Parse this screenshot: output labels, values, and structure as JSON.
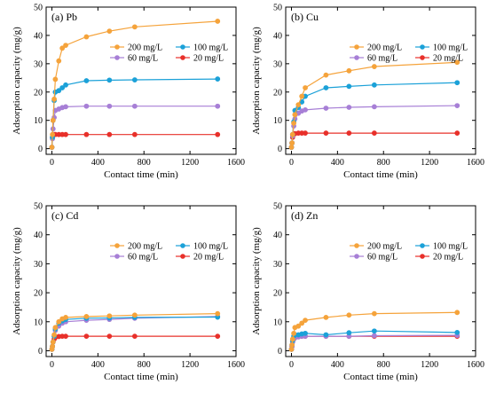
{
  "chart_data": [
    {
      "type": "line",
      "panel_label": "(a) Pb",
      "xlabel": "Contact time (min)",
      "ylabel": "Adsorption capacity (mg/g)",
      "xlim": [
        -50,
        1600
      ],
      "ylim": [
        -2,
        50
      ],
      "xticks": [
        0,
        400,
        800,
        1200,
        1600
      ],
      "yticks": [
        0,
        10,
        20,
        30,
        40,
        50
      ],
      "legend": "top-right",
      "series": [
        {
          "name": "200 mg/L",
          "color": "#f5a33b",
          "x": [
            0,
            5,
            10,
            20,
            30,
            60,
            90,
            120,
            300,
            500,
            720,
            1440
          ],
          "y": [
            0.5,
            5,
            10,
            17.5,
            24.5,
            31,
            35.5,
            36.5,
            39.5,
            41.5,
            43,
            45
          ]
        },
        {
          "name": "100 mg/L",
          "color": "#1ba1d8",
          "x": [
            0,
            5,
            10,
            20,
            30,
            60,
            90,
            120,
            300,
            500,
            720,
            1440
          ],
          "y": [
            0.5,
            4,
            10,
            17,
            20,
            20.5,
            21.5,
            22.5,
            24,
            24.2,
            24.3,
            24.6
          ]
        },
        {
          "name": "60 mg/L",
          "color": "#a77fd6",
          "x": [
            0,
            5,
            10,
            20,
            30,
            60,
            90,
            120,
            300,
            500,
            720,
            1440
          ],
          "y": [
            0.5,
            3.5,
            7,
            11,
            13.5,
            14,
            14.5,
            14.8,
            15,
            15,
            15,
            15
          ]
        },
        {
          "name": "20 mg/L",
          "color": "#e8302a",
          "x": [
            0,
            5,
            10,
            20,
            30,
            60,
            90,
            120,
            300,
            500,
            720,
            1440
          ],
          "y": [
            0.5,
            4,
            4.8,
            5,
            5,
            5,
            5,
            5,
            5,
            5,
            5,
            5
          ]
        }
      ]
    },
    {
      "type": "line",
      "panel_label": "(b) Cu",
      "xlabel": "Contact time (min)",
      "ylabel": "Adsorption capacity (mg/g)",
      "xlim": [
        -50,
        1600
      ],
      "ylim": [
        -2,
        50
      ],
      "xticks": [
        0,
        400,
        800,
        1200,
        1600
      ],
      "yticks": [
        0,
        10,
        20,
        30,
        40,
        50
      ],
      "legend": "top-right",
      "series": [
        {
          "name": "200 mg/L",
          "color": "#f5a33b",
          "x": [
            0,
            5,
            10,
            20,
            30,
            60,
            90,
            120,
            300,
            500,
            720,
            1440
          ],
          "y": [
            0.5,
            2,
            5,
            9,
            12,
            15.5,
            18.5,
            21.5,
            26,
            27.5,
            29,
            30.5
          ]
        },
        {
          "name": "100 mg/L",
          "color": "#1ba1d8",
          "x": [
            0,
            5,
            10,
            20,
            30,
            60,
            90,
            120,
            300,
            500,
            720,
            1440
          ],
          "y": [
            0.5,
            2,
            5,
            9.5,
            13.5,
            14.5,
            16.5,
            18.5,
            21.5,
            22,
            22.5,
            23.3
          ]
        },
        {
          "name": "60 mg/L",
          "color": "#a77fd6",
          "x": [
            0,
            5,
            10,
            20,
            30,
            60,
            90,
            120,
            300,
            500,
            720,
            1440
          ],
          "y": [
            0.5,
            2,
            4.5,
            8,
            10.5,
            12.5,
            13.3,
            13.7,
            14.3,
            14.6,
            14.8,
            15.2
          ]
        },
        {
          "name": "20 mg/L",
          "color": "#e8302a",
          "x": [
            0,
            5,
            10,
            20,
            30,
            60,
            90,
            120,
            300,
            500,
            720,
            1440
          ],
          "y": [
            0.5,
            2,
            4,
            5,
            5.3,
            5.5,
            5.5,
            5.5,
            5.5,
            5.5,
            5.5,
            5.5
          ]
        }
      ]
    },
    {
      "type": "line",
      "panel_label": "(c) Cd",
      "xlabel": "Contact time (min)",
      "ylabel": "Adsorption capacity (mg/g)",
      "xlim": [
        -50,
        1600
      ],
      "ylim": [
        -2,
        50
      ],
      "xticks": [
        0,
        400,
        800,
        1200,
        1600
      ],
      "yticks": [
        0,
        10,
        20,
        30,
        40,
        50
      ],
      "legend": "top-right",
      "series": [
        {
          "name": "200 mg/L",
          "color": "#f5a33b",
          "x": [
            0,
            5,
            10,
            20,
            30,
            60,
            90,
            120,
            300,
            500,
            720,
            1440
          ],
          "y": [
            0.5,
            1.5,
            3,
            5.5,
            8,
            10,
            11,
            11.5,
            11.8,
            12,
            12.3,
            12.8
          ]
        },
        {
          "name": "100 mg/L",
          "color": "#1ba1d8",
          "x": [
            0,
            5,
            10,
            20,
            30,
            60,
            90,
            120,
            300,
            500,
            720,
            1440
          ],
          "y": [
            0.5,
            1.5,
            3,
            5,
            7.5,
            9.5,
            10.3,
            10.8,
            11.2,
            11.3,
            11.5,
            11.6
          ]
        },
        {
          "name": "60 mg/L",
          "color": "#a77fd6",
          "x": [
            0,
            5,
            10,
            20,
            30,
            60,
            90,
            120,
            300,
            500,
            720,
            1440
          ],
          "y": [
            0.5,
            1.5,
            3,
            5,
            7,
            8.5,
            9.5,
            10,
            10.5,
            10.8,
            11.2,
            11.8
          ]
        },
        {
          "name": "20 mg/L",
          "color": "#e8302a",
          "x": [
            0,
            5,
            10,
            20,
            30,
            60,
            90,
            120,
            300,
            500,
            720,
            1440
          ],
          "y": [
            0.5,
            1.5,
            3,
            4,
            4.6,
            4.9,
            5,
            5,
            5,
            5,
            5,
            5
          ]
        }
      ]
    },
    {
      "type": "line",
      "panel_label": "(d) Zn",
      "xlabel": "Contact time (min)",
      "ylabel": "Adsorption capacity (mg/g)",
      "xlim": [
        -50,
        1600
      ],
      "ylim": [
        -2,
        50
      ],
      "xticks": [
        0,
        400,
        800,
        1200,
        1600
      ],
      "yticks": [
        0,
        10,
        20,
        30,
        40,
        50
      ],
      "legend": "top-right",
      "series": [
        {
          "name": "200 mg/L",
          "color": "#f5a33b",
          "x": [
            0,
            5,
            10,
            20,
            30,
            60,
            90,
            120,
            300,
            500,
            720,
            1440
          ],
          "y": [
            0.5,
            2,
            4,
            6,
            8,
            8.5,
            9.5,
            10.5,
            11.5,
            12.3,
            12.8,
            13.2
          ]
        },
        {
          "name": "100 mg/L",
          "color": "#1ba1d8",
          "x": [
            0,
            5,
            10,
            20,
            30,
            60,
            90,
            120,
            300,
            500,
            720,
            1440
          ],
          "y": [
            0.5,
            2,
            3.5,
            5,
            5.5,
            5.5,
            5.8,
            6,
            5.5,
            6.2,
            6.8,
            6.3
          ]
        },
        {
          "name": "60 mg/L",
          "color": "#a77fd6",
          "x": [
            0,
            5,
            10,
            20,
            30,
            60,
            90,
            120,
            300,
            500,
            720,
            1440
          ],
          "y": [
            0.5,
            1.5,
            3,
            4,
            4.5,
            4.8,
            5,
            5,
            5,
            5,
            5.2,
            5.3
          ]
        },
        {
          "name": "20 mg/L",
          "color": "#e8302a",
          "x": [
            0,
            5,
            10,
            20,
            30,
            60,
            90,
            120,
            300,
            500,
            720,
            1440
          ],
          "y": [
            0.5,
            1.5,
            3,
            4,
            4.5,
            4.8,
            5,
            5,
            5,
            5,
            5,
            5
          ]
        }
      ]
    }
  ]
}
